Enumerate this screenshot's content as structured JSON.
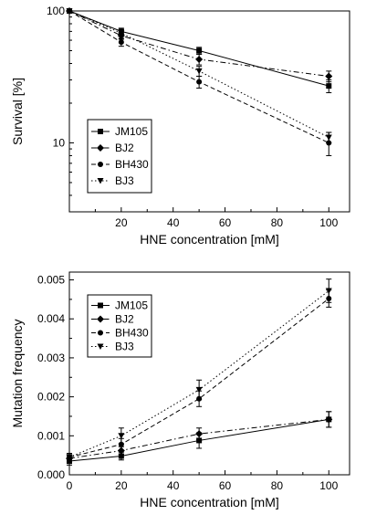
{
  "chart_data": [
    {
      "type": "line",
      "title": "",
      "xlabel": "HNE concentration [mM]",
      "ylabel": "Survival [%]",
      "xscale": "linear",
      "yscale": "log",
      "xlim": [
        0,
        108
      ],
      "ylim": [
        3,
        100
      ],
      "x_ticks": [
        20,
        40,
        60,
        80,
        100
      ],
      "x_tick_labels": [
        "20",
        "40",
        "60",
        "80",
        "100"
      ],
      "y_ticks": [
        10,
        100
      ],
      "y_tick_labels": [
        "10",
        "100"
      ],
      "legend_position": "bottom-left",
      "grid": false,
      "series": [
        {
          "name": "JM105",
          "marker": "square",
          "dash": "solid",
          "x": [
            0,
            20,
            50,
            100
          ],
          "y": [
            100,
            70,
            50,
            27
          ],
          "err": [
            0,
            4,
            3,
            3
          ]
        },
        {
          "name": "BJ2",
          "marker": "diamond",
          "dash": "dashdot",
          "x": [
            0,
            20,
            50,
            100
          ],
          "y": [
            100,
            65,
            43,
            32
          ],
          "err": [
            0,
            4,
            4,
            3
          ]
        },
        {
          "name": "BH430",
          "marker": "circle",
          "dash": "dashed",
          "x": [
            0,
            20,
            50,
            100
          ],
          "y": [
            100,
            58,
            29,
            10
          ],
          "err": [
            0,
            4,
            3,
            2
          ]
        },
        {
          "name": "BJ3",
          "marker": "triangle-down",
          "dash": "dotted",
          "x": [
            0,
            20,
            50,
            100
          ],
          "y": [
            100,
            68,
            35,
            11
          ],
          "err": [
            0,
            4,
            3,
            1
          ]
        }
      ]
    },
    {
      "type": "line",
      "title": "",
      "xlabel": "HNE concentration [mM]",
      "ylabel": "Mutation frequency",
      "xscale": "linear",
      "yscale": "linear",
      "xlim": [
        0,
        108
      ],
      "ylim": [
        0,
        0.0052
      ],
      "x_ticks": [
        0,
        20,
        40,
        60,
        80,
        100
      ],
      "x_tick_labels": [
        "0",
        "20",
        "40",
        "60",
        "80",
        "100"
      ],
      "y_ticks": [
        0,
        0.001,
        0.002,
        0.003,
        0.004,
        0.005
      ],
      "y_tick_labels": [
        "0.000",
        "0.001",
        "0.002",
        "0.003",
        "0.004",
        "0.005"
      ],
      "legend_position": "top-left",
      "grid": false,
      "series": [
        {
          "name": "JM105",
          "marker": "square",
          "dash": "solid",
          "x": [
            0,
            20,
            50,
            100
          ],
          "y": [
            0.00035,
            0.00048,
            0.00088,
            0.00142
          ],
          "err": [
            0.0001,
            0.0001,
            0.0002,
            0.0002
          ]
        },
        {
          "name": "BJ2",
          "marker": "diamond",
          "dash": "dashdot",
          "x": [
            0,
            20,
            50,
            100
          ],
          "y": [
            0.00042,
            0.00062,
            0.00105,
            0.00142
          ],
          "err": [
            0.0001,
            0.0001,
            0.00015,
            0.0002
          ]
        },
        {
          "name": "BH430",
          "marker": "circle",
          "dash": "dashed",
          "x": [
            0,
            20,
            50,
            100
          ],
          "y": [
            0.00045,
            0.00078,
            0.00195,
            0.00452
          ],
          "err": [
            0.0001,
            0.00015,
            0.0002,
            0.00022
          ]
        },
        {
          "name": "BJ3",
          "marker": "triangle-down",
          "dash": "dotted",
          "x": [
            0,
            20,
            50,
            100
          ],
          "y": [
            0.00045,
            0.001,
            0.00218,
            0.00472
          ],
          "err": [
            0.0001,
            0.0002,
            0.00025,
            0.0003
          ]
        }
      ]
    }
  ]
}
